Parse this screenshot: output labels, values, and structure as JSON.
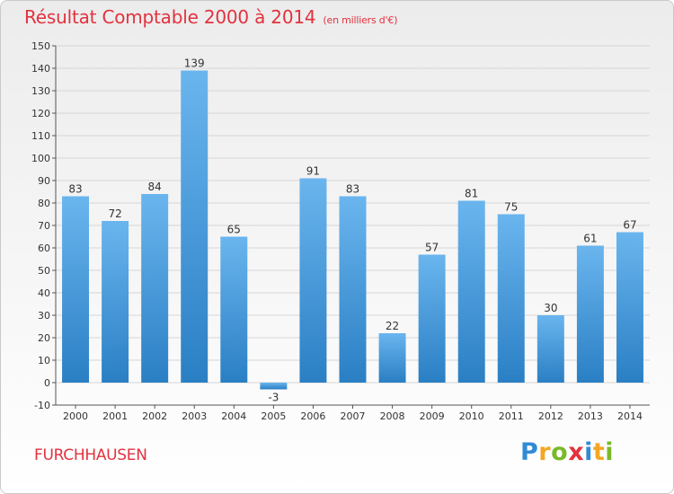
{
  "title": "Résultat Comptable 2000 à 2014",
  "subtitle": "(en milliers d'€)",
  "town": "FURCHHAUSEN",
  "logo": {
    "letters": [
      "P",
      "r",
      "o",
      "x",
      "i",
      "t",
      "i"
    ],
    "colors": [
      "#2f8bd6",
      "#f5a623",
      "#7ab929",
      "#e2323e",
      "#2f8bd6",
      "#f5a623",
      "#7ab929"
    ]
  },
  "colors": {
    "bar_light": "#6ab5ee",
    "bar_dark": "#2a7fc4",
    "accent": "#e2323e"
  },
  "chart_data": {
    "type": "bar",
    "title": "Résultat Comptable 2000 à 2014",
    "subtitle": "(en milliers d'€)",
    "xlabel": "",
    "ylabel": "",
    "ylim": [
      -10,
      150
    ],
    "yticks": [
      -10,
      0,
      10,
      20,
      30,
      40,
      50,
      60,
      70,
      80,
      90,
      100,
      110,
      120,
      130,
      140,
      150
    ],
    "grid": true,
    "categories": [
      "2000",
      "2001",
      "2002",
      "2003",
      "2004",
      "2005",
      "2006",
      "2007",
      "2008",
      "2009",
      "2010",
      "2011",
      "2012",
      "2013",
      "2014"
    ],
    "values": [
      83,
      72,
      84,
      139,
      65,
      -3,
      91,
      83,
      22,
      57,
      81,
      75,
      30,
      61,
      67
    ]
  }
}
